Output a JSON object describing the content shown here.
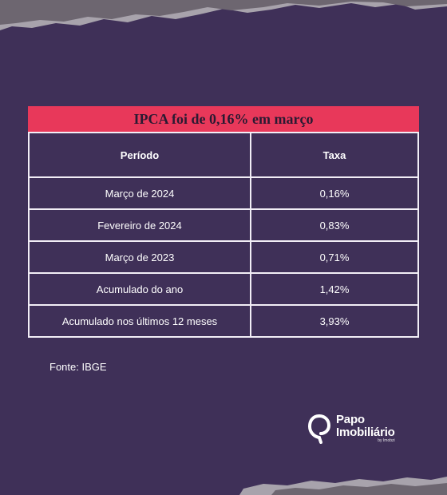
{
  "table": {
    "title": "IPCA foi de 0,16% em março",
    "headers": [
      "Período",
      "Taxa"
    ],
    "rows": [
      [
        "Março de 2024",
        "0,16%"
      ],
      [
        "Fevereiro de 2024",
        "0,83%"
      ],
      [
        "Março de 2023",
        "0,71%"
      ],
      [
        "Acumulado do ano",
        "1,42%"
      ],
      [
        "Acumulado nos últimos 12 meses",
        "3,93%"
      ]
    ]
  },
  "source": "Fonte: IBGE",
  "logo": {
    "line1": "Papo",
    "line2": "Imobiliário",
    "sub": "by Imobzi"
  },
  "colors": {
    "background": "#3f3058",
    "title_bar": "#e8385a",
    "border": "#f2eef6"
  }
}
